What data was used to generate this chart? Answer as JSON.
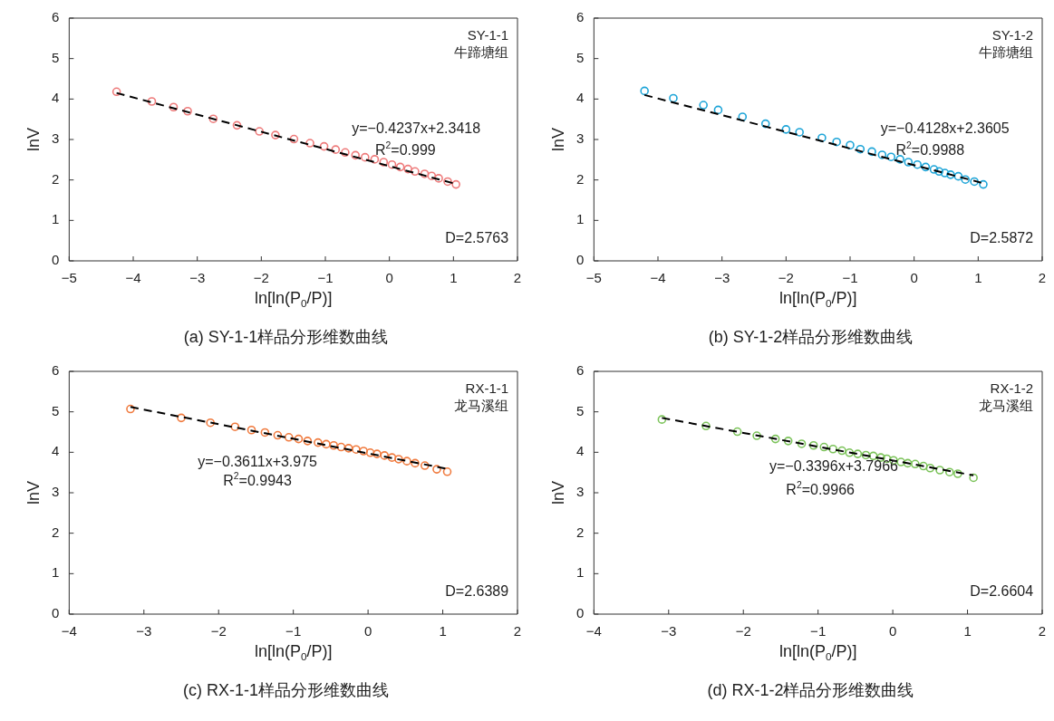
{
  "chart_data": [
    {
      "type": "scatter",
      "title": "(a) SY-1-1样品分形维数曲线",
      "xlabel": "ln[ln(P$_{0}$/P)]",
      "ylabel": "lnV",
      "xlim": [
        -5,
        2
      ],
      "xticks": [
        {
          "value": -5,
          "label": "−5"
        },
        {
          "value": -4,
          "label": "−4"
        },
        {
          "value": -3,
          "label": "−3"
        },
        {
          "value": -2,
          "label": "−2"
        },
        {
          "value": -1,
          "label": "−1"
        },
        0,
        1,
        2
      ],
      "ylim": [
        0,
        6
      ],
      "yticks": [
        0,
        1,
        2,
        3,
        4,
        5,
        6
      ],
      "grid": false,
      "legend": false,
      "marker": "circle",
      "series": [
        {
          "color": "#ee7b7b",
          "x": [
            -4.26,
            -3.71,
            -3.37,
            -3.15,
            -2.75,
            -2.38,
            -2.03,
            -1.78,
            -1.49,
            -1.24,
            -1.02,
            -0.84,
            -0.69,
            -0.53,
            -0.38,
            -0.23,
            -0.09,
            0.04,
            0.17,
            0.29,
            0.4,
            0.55,
            0.66,
            0.77,
            0.91,
            1.04
          ],
          "values": [
            4.18,
            3.94,
            3.8,
            3.7,
            3.51,
            3.35,
            3.2,
            3.11,
            3.01,
            2.91,
            2.83,
            2.75,
            2.68,
            2.61,
            2.56,
            2.51,
            2.44,
            2.38,
            2.32,
            2.27,
            2.21,
            2.15,
            2.1,
            2.04,
            1.96,
            1.89
          ]
        },
        {
          "type": "line",
          "color": "#000000",
          "line_style": "dashed",
          "marker": "none",
          "x": [
            -4.26,
            1.04
          ],
          "values": [
            4.15,
            1.9
          ]
        }
      ],
      "annotations": [
        "SY-1-1",
        "牛蹄塘组",
        "y=−0.4237x+2.3418",
        "R$^{2}$=0.999",
        "D=2.5763"
      ]
    },
    {
      "type": "scatter",
      "title": "(b) SY-1-2样品分形维数曲线",
      "xlabel": "ln[ln(P$_{0}$/P)]",
      "ylabel": "lnV",
      "xlim": [
        -5,
        2
      ],
      "xticks": [
        {
          "value": -5,
          "label": "−5"
        },
        {
          "value": -4,
          "label": "−4"
        },
        {
          "value": -3,
          "label": "−3"
        },
        {
          "value": -2,
          "label": "−2"
        },
        {
          "value": -1,
          "label": "−1"
        },
        0,
        1,
        2
      ],
      "ylim": [
        0,
        6
      ],
      "yticks": [
        0,
        1,
        2,
        3,
        4,
        5,
        6
      ],
      "grid": false,
      "legend": false,
      "marker": "circle",
      "series": [
        {
          "color": "#1ea5d8",
          "x": [
            -4.21,
            -3.76,
            -3.29,
            -3.06,
            -2.68,
            -2.32,
            -2.0,
            -1.79,
            -1.44,
            -1.21,
            -1.0,
            -0.84,
            -0.66,
            -0.5,
            -0.36,
            -0.22,
            -0.09,
            0.05,
            0.18,
            0.31,
            0.39,
            0.48,
            0.57,
            0.69,
            0.8,
            0.94,
            1.08
          ],
          "values": [
            4.2,
            4.02,
            3.85,
            3.73,
            3.56,
            3.39,
            3.25,
            3.18,
            3.04,
            2.94,
            2.86,
            2.76,
            2.7,
            2.62,
            2.57,
            2.51,
            2.44,
            2.38,
            2.32,
            2.26,
            2.21,
            2.17,
            2.13,
            2.09,
            2.01,
            1.96,
            1.89
          ]
        },
        {
          "type": "line",
          "color": "#000000",
          "line_style": "dashed",
          "marker": "none",
          "x": [
            -4.21,
            1.08
          ],
          "values": [
            4.1,
            1.92
          ]
        }
      ],
      "annotations": [
        "SY-1-2",
        "牛蹄塘组",
        "y=−0.4128x+2.3605",
        "R$^{2}$=0.9988",
        "D=2.5872"
      ]
    },
    {
      "type": "scatter",
      "title": "(c) RX-1-1样品分形维数曲线",
      "xlabel": "ln[ln(P$_{0}$/P)]",
      "ylabel": "lnV",
      "xlim": [
        -4,
        2
      ],
      "xticks": [
        {
          "value": -4,
          "label": "−4"
        },
        {
          "value": -3,
          "label": "−3"
        },
        {
          "value": -2,
          "label": "−2"
        },
        {
          "value": -1,
          "label": "−1"
        },
        0,
        1,
        2
      ],
      "ylim": [
        0,
        6
      ],
      "yticks": [
        0,
        1,
        2,
        3,
        4,
        5,
        6
      ],
      "grid": false,
      "legend": false,
      "marker": "circle",
      "series": [
        {
          "color": "#f07b3f",
          "x": [
            -3.18,
            -2.5,
            -2.11,
            -1.78,
            -1.56,
            -1.38,
            -1.21,
            -1.06,
            -0.93,
            -0.81,
            -0.67,
            -0.56,
            -0.46,
            -0.36,
            -0.26,
            -0.16,
            -0.06,
            0.03,
            0.12,
            0.22,
            0.32,
            0.41,
            0.52,
            0.63,
            0.76,
            0.92,
            1.06
          ],
          "values": [
            5.07,
            4.85,
            4.73,
            4.63,
            4.55,
            4.49,
            4.42,
            4.37,
            4.33,
            4.28,
            4.24,
            4.2,
            4.17,
            4.13,
            4.1,
            4.07,
            4.03,
            3.99,
            3.96,
            3.92,
            3.87,
            3.83,
            3.78,
            3.73,
            3.67,
            3.58,
            3.52
          ]
        },
        {
          "type": "line",
          "color": "#000000",
          "line_style": "dashed",
          "marker": "none",
          "x": [
            -3.18,
            1.06
          ],
          "values": [
            5.12,
            3.59
          ]
        }
      ],
      "annotations": [
        "RX-1-1",
        "龙马溪组",
        "y=−0.3611x+3.975",
        "R$^{2}$=0.9943",
        "D=2.6389"
      ]
    },
    {
      "type": "scatter",
      "title": "(d) RX-1-2样品分形维数曲线",
      "xlabel": "ln[ln(P$_{0}$/P)]",
      "ylabel": "lnV",
      "xlim": [
        -4,
        2
      ],
      "xticks": [
        {
          "value": -4,
          "label": "−4"
        },
        {
          "value": -3,
          "label": "−3"
        },
        {
          "value": -2,
          "label": "−2"
        },
        {
          "value": -1,
          "label": "−1"
        },
        0,
        1,
        2
      ],
      "ylim": [
        0,
        6
      ],
      "yticks": [
        0,
        1,
        2,
        3,
        4,
        5,
        6
      ],
      "grid": false,
      "legend": false,
      "marker": "circle",
      "series": [
        {
          "color": "#7cc35a",
          "x": [
            -3.09,
            -2.5,
            -2.08,
            -1.82,
            -1.57,
            -1.4,
            -1.22,
            -1.06,
            -0.92,
            -0.8,
            -0.68,
            -0.58,
            -0.47,
            -0.36,
            -0.26,
            -0.16,
            -0.08,
            0.01,
            0.11,
            0.2,
            0.3,
            0.41,
            0.5,
            0.63,
            0.76,
            0.87,
            1.08
          ],
          "values": [
            4.81,
            4.65,
            4.51,
            4.41,
            4.33,
            4.28,
            4.21,
            4.17,
            4.13,
            4.08,
            4.04,
            3.99,
            3.96,
            3.93,
            3.91,
            3.87,
            3.84,
            3.8,
            3.76,
            3.73,
            3.71,
            3.66,
            3.61,
            3.56,
            3.51,
            3.47,
            3.37
          ]
        },
        {
          "type": "line",
          "color": "#000000",
          "line_style": "dashed",
          "marker": "none",
          "x": [
            -3.09,
            1.08
          ],
          "values": [
            4.85,
            3.43
          ]
        }
      ],
      "annotations": [
        "RX-1-2",
        "龙马溪组",
        "y=−0.3396x+3.7966",
        "R$^{2}$=0.9966",
        "D=2.6604"
      ]
    }
  ]
}
